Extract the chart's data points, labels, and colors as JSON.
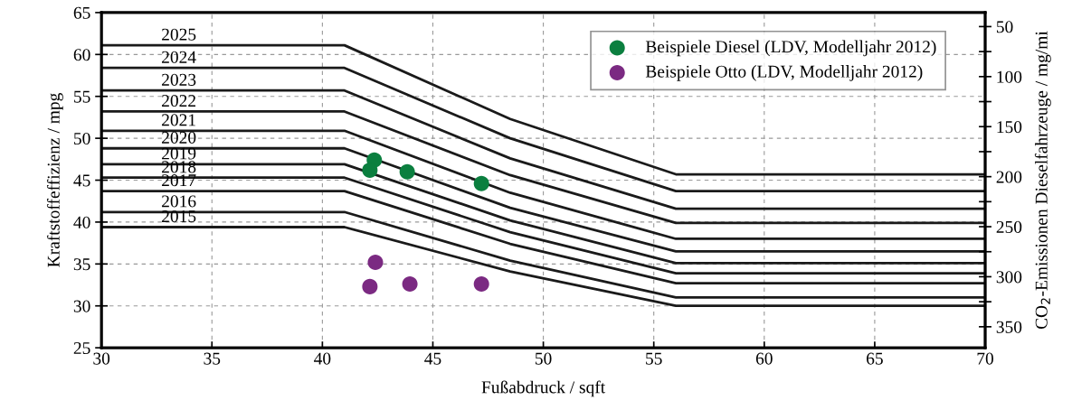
{
  "chart_data": {
    "type": "line",
    "xlabel": "Fußabdruck / sqft",
    "ylabel": "Kraftstoffeffizienz / mpg",
    "y2label": "CO$_{2}$-Emissionen Dieselfahrzeuge / mg/mi",
    "xlim": [
      30,
      70
    ],
    "xticks": [
      30,
      35,
      40,
      45,
      50,
      55,
      60,
      65,
      70
    ],
    "ylim": [
      25,
      65
    ],
    "yticks": [
      25,
      30,
      35,
      40,
      45,
      50,
      55,
      60,
      65
    ],
    "y2lim": [
      371,
      36
    ],
    "y2ticks": [
      50,
      {
        "value": 75,
        "label": null
      },
      100,
      {
        "value": 125,
        "label": null
      },
      150,
      {
        "value": 175,
        "label": null
      },
      200,
      {
        "value": 225,
        "label": null
      },
      250,
      {
        "value": 275,
        "label": null
      },
      300,
      {
        "value": 325,
        "label": null
      },
      350
    ],
    "grid": true,
    "legend": "top right",
    "line_style": "solid",
    "marker": "none",
    "series": [
      {
        "name": "2025",
        "color": "#1a1a1a",
        "x": [
          30,
          41,
          48.5,
          56,
          70
        ],
        "values": [
          61.1,
          61.1,
          52.3,
          45.7,
          45.7
        ]
      },
      {
        "name": "2024",
        "color": "#1a1a1a",
        "x": [
          30,
          41,
          48.5,
          56,
          70
        ],
        "values": [
          58.4,
          58.4,
          50.0,
          43.7,
          43.7
        ]
      },
      {
        "name": "2023",
        "color": "#1a1a1a",
        "x": [
          30,
          41,
          48.5,
          56,
          70
        ],
        "values": [
          55.7,
          55.7,
          47.6,
          41.6,
          41.6
        ]
      },
      {
        "name": "2022",
        "color": "#1a1a1a",
        "x": [
          30,
          41,
          48.5,
          56,
          70
        ],
        "values": [
          53.2,
          53.2,
          45.6,
          39.9,
          39.9
        ]
      },
      {
        "name": "2021",
        "color": "#1a1a1a",
        "x": [
          30,
          41,
          48.5,
          56,
          70
        ],
        "values": [
          50.9,
          50.9,
          43.5,
          38.0,
          38.0
        ]
      },
      {
        "name": "2020",
        "color": "#1a1a1a",
        "x": [
          30,
          41,
          48.5,
          56,
          70
        ],
        "values": [
          48.8,
          48.8,
          41.7,
          36.5,
          36.5
        ]
      },
      {
        "name": "2019",
        "color": "#1a1a1a",
        "x": [
          30,
          41,
          48.5,
          56,
          70
        ],
        "values": [
          46.9,
          46.9,
          40.2,
          35.1,
          35.1
        ]
      },
      {
        "name": "2018",
        "color": "#1a1a1a",
        "x": [
          30,
          41,
          48.5,
          56,
          70
        ],
        "values": [
          45.3,
          45.3,
          38.8,
          33.9,
          33.9
        ]
      },
      {
        "name": "2017",
        "color": "#1a1a1a",
        "x": [
          30,
          41,
          48.5,
          56,
          70
        ],
        "values": [
          43.7,
          43.7,
          37.4,
          32.7,
          32.7
        ]
      },
      {
        "name": "2016",
        "color": "#1a1a1a",
        "x": [
          30,
          41,
          48.5,
          56,
          70
        ],
        "values": [
          41.2,
          41.2,
          35.4,
          31.0,
          31.0
        ]
      },
      {
        "name": "2015",
        "color": "#1a1a1a",
        "x": [
          30,
          41,
          48.5,
          56,
          70
        ],
        "values": [
          39.4,
          39.4,
          34.1,
          30.0,
          30.0
        ]
      },
      {
        "name": "Beispiele Diesel (LDV, Modelljahr 2012)",
        "type": "scatter",
        "marker": "circle",
        "color": "#0b7f3f",
        "x": [
          42.35,
          42.15,
          43.84,
          47.2
        ],
        "values": [
          47.4,
          46.2,
          46.0,
          44.6
        ]
      },
      {
        "name": "Beispiele Otto (LDV, Modelljahr 2012)",
        "type": "scatter",
        "marker": "circle",
        "color": "#7b2a82",
        "x": [
          42.4,
          42.15,
          43.96,
          47.2
        ],
        "values": [
          35.2,
          32.3,
          32.6,
          32.6
        ]
      }
    ]
  }
}
